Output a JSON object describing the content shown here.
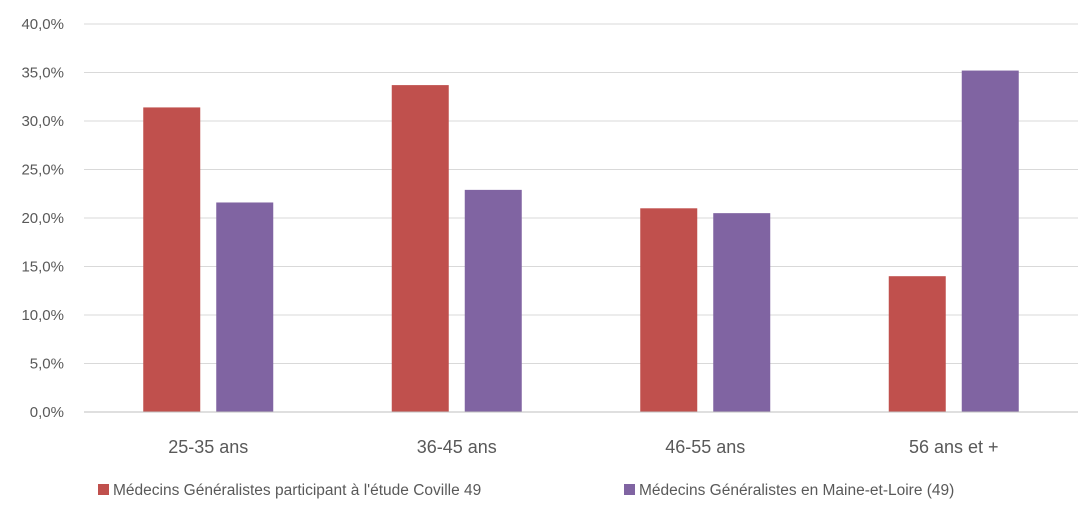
{
  "chart_data": {
    "type": "bar",
    "title": "",
    "xlabel": "",
    "ylabel": "",
    "categories": [
      "25-35 ans",
      "36-45 ans",
      "46-55 ans",
      "56 ans et +"
    ],
    "series": [
      {
        "name": "Médecins Généralistes participant à l'étude Coville 49",
        "color": "#c0504d",
        "values": [
          31.4,
          33.7,
          21.0,
          14.0
        ]
      },
      {
        "name": "Médecins Généralistes en Maine-et-Loire (49)",
        "color": "#8064a2",
        "values": [
          21.6,
          22.9,
          20.5,
          35.2
        ]
      }
    ],
    "ylim": [
      0,
      40
    ],
    "yticks": [
      0,
      5,
      10,
      15,
      20,
      25,
      30,
      35,
      40
    ],
    "ytick_labels": [
      "0,0%",
      "5,0%",
      "10,0%",
      "15,0%",
      "20,0%",
      "25,0%",
      "30,0%",
      "35,0%",
      "40,0%"
    ],
    "grid": true,
    "grid_color": "#d9d9d9",
    "legend_position": "bottom"
  }
}
